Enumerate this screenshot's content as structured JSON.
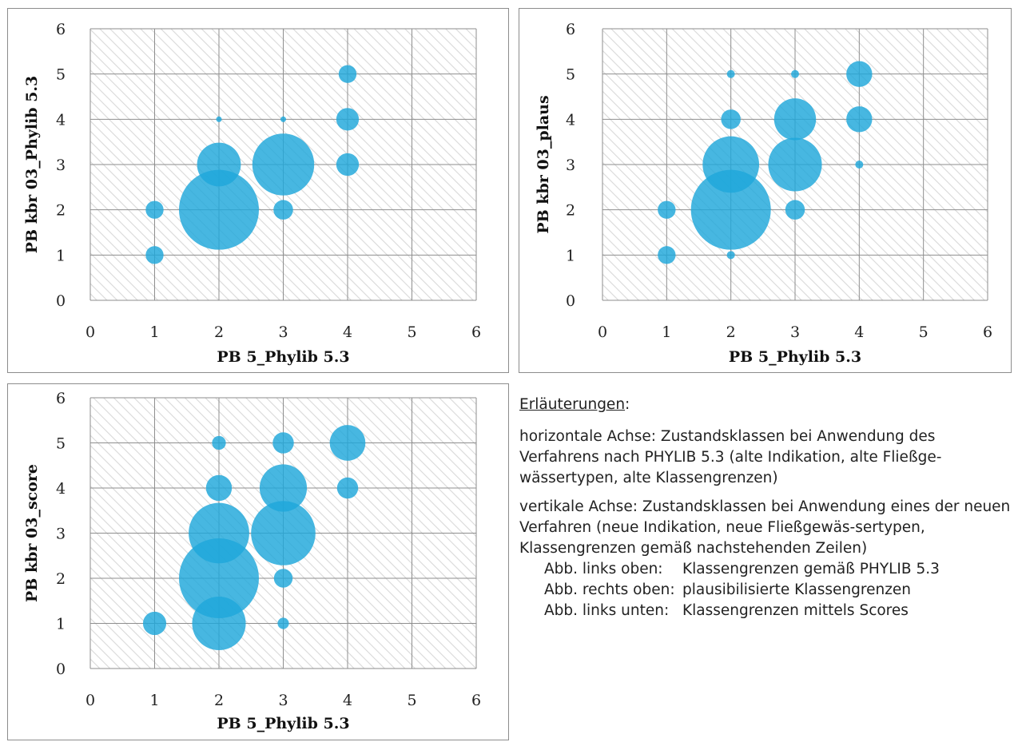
{
  "chart_data": [
    {
      "type": "bubble",
      "xlabel": "PB 5_Phylib 5.3",
      "ylabel": "PB kbr 03_Phylib 5.3",
      "xlim": [
        0,
        6
      ],
      "ylim": [
        0,
        6
      ],
      "xticks": [
        0,
        1,
        2,
        3,
        4,
        5,
        6
      ],
      "yticks": [
        0,
        1,
        2,
        3,
        4,
        5,
        6
      ],
      "grid": true,
      "points": [
        {
          "x": 1,
          "y": 1,
          "size": 1
        },
        {
          "x": 1,
          "y": 2,
          "size": 1
        },
        {
          "x": 2,
          "y": 2,
          "size": 20
        },
        {
          "x": 2,
          "y": 3,
          "size": 6
        },
        {
          "x": 2,
          "y": 4,
          "size": 0.1
        },
        {
          "x": 3,
          "y": 2,
          "size": 1.2
        },
        {
          "x": 3,
          "y": 3,
          "size": 12
        },
        {
          "x": 3,
          "y": 4,
          "size": 0.1
        },
        {
          "x": 4,
          "y": 3,
          "size": 1.6
        },
        {
          "x": 4,
          "y": 4,
          "size": 1.6
        },
        {
          "x": 4,
          "y": 5,
          "size": 1
        }
      ]
    },
    {
      "type": "bubble",
      "xlabel": "PB 5_Phylib 5.3",
      "ylabel": "PB kbr 03_plaus",
      "xlim": [
        0,
        6
      ],
      "ylim": [
        0,
        6
      ],
      "xticks": [
        0,
        1,
        2,
        3,
        4,
        5,
        6
      ],
      "yticks": [
        0,
        1,
        2,
        3,
        4,
        5,
        6
      ],
      "grid": true,
      "points": [
        {
          "x": 1,
          "y": 1,
          "size": 1
        },
        {
          "x": 1,
          "y": 2,
          "size": 1
        },
        {
          "x": 2,
          "y": 1,
          "size": 0.2
        },
        {
          "x": 2,
          "y": 2,
          "size": 20
        },
        {
          "x": 2,
          "y": 3,
          "size": 10
        },
        {
          "x": 2,
          "y": 4,
          "size": 1.2
        },
        {
          "x": 2,
          "y": 5,
          "size": 0.2
        },
        {
          "x": 3,
          "y": 2,
          "size": 1.2
        },
        {
          "x": 3,
          "y": 3,
          "size": 9
        },
        {
          "x": 3,
          "y": 4,
          "size": 5.5
        },
        {
          "x": 3,
          "y": 5,
          "size": 0.2
        },
        {
          "x": 4,
          "y": 3,
          "size": 0.2
        },
        {
          "x": 4,
          "y": 4,
          "size": 2.1
        },
        {
          "x": 4,
          "y": 5,
          "size": 2.1
        }
      ]
    },
    {
      "type": "bubble",
      "xlabel": "PB 5_Phylib 5.3",
      "ylabel": "PB kbr 03_score",
      "xlim": [
        0,
        6
      ],
      "ylim": [
        0,
        6
      ],
      "xticks": [
        0,
        1,
        2,
        3,
        4,
        5,
        6
      ],
      "yticks": [
        0,
        1,
        2,
        3,
        4,
        5,
        6
      ],
      "grid": true,
      "points": [
        {
          "x": 1,
          "y": 1,
          "size": 1.7
        },
        {
          "x": 2,
          "y": 1,
          "size": 9
        },
        {
          "x": 2,
          "y": 2,
          "size": 20
        },
        {
          "x": 2,
          "y": 3,
          "size": 11.5
        },
        {
          "x": 2,
          "y": 4,
          "size": 2.1
        },
        {
          "x": 2,
          "y": 5,
          "size": 0.6
        },
        {
          "x": 3,
          "y": 1,
          "size": 0.4
        },
        {
          "x": 3,
          "y": 2,
          "size": 1.1
        },
        {
          "x": 3,
          "y": 3,
          "size": 13
        },
        {
          "x": 3,
          "y": 4,
          "size": 7
        },
        {
          "x": 3,
          "y": 5,
          "size": 1.4
        },
        {
          "x": 4,
          "y": 4,
          "size": 1.4
        },
        {
          "x": 4,
          "y": 5,
          "size": 4
        }
      ]
    }
  ],
  "colors": {
    "bubble": "#1ea7db",
    "grid": "#8e8e8e",
    "hatch": "#d9d9d9",
    "border": "#8c8c8c"
  },
  "notes": {
    "heading": "Erläuterungen",
    "heading_suffix": ":",
    "horizontal": "horizontale Achse: Zustandsklassen bei Anwendung des Verfahrens nach PHYLIB 5.3 (alte Indikation, alte Fließge-wässertypen, alte Klassengrenzen)",
    "vertical": "vertikale Achse: Zustandsklassen bei Anwendung eines der neuen Verfahren (neue Indikation, neue Fließgewäs-sertypen, Klassengrenzen gemäß nachstehenden Zeilen)",
    "rows": [
      {
        "key": "Abb. links oben:",
        "value": "Klassengrenzen gemäß PHYLIB 5.3"
      },
      {
        "key": "Abb. rechts oben:",
        "value": "plausibilisierte Klassengrenzen"
      },
      {
        "key": "Abb. links unten:",
        "value": "Klassengrenzen mittels Scores"
      }
    ]
  }
}
